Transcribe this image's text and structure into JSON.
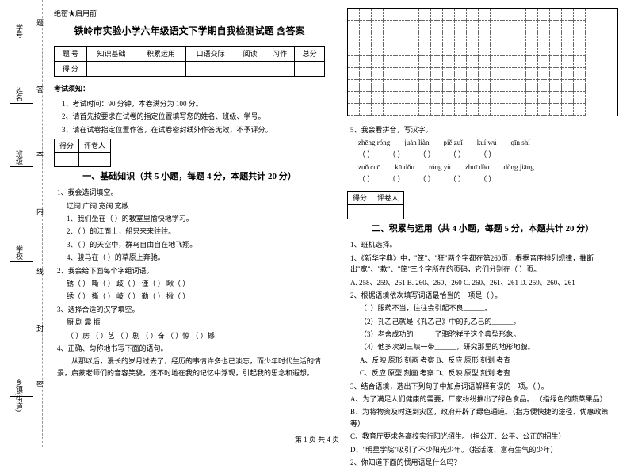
{
  "margin": {
    "xuehao": "学号",
    "xingming": "姓名",
    "banji": "班级",
    "xuexiao": "学校",
    "xiangzhen": "乡镇(街道)",
    "vt1": "题",
    "vt2": "答",
    "vt3": "本",
    "vt4": "内",
    "vt5": "线",
    "vt6": "封",
    "vt7": "密"
  },
  "secret": "绝密★启用前",
  "title": "铁岭市实验小学六年级语文下学期自我检测试题 含答案",
  "scoreHeaders": [
    "题 号",
    "知识基础",
    "积累运用",
    "口语交际",
    "阅读",
    "习作",
    "总分"
  ],
  "scoreRow": "得 分",
  "noticeHead": "考试须知：",
  "notices": [
    "1、考试时间：90 分钟，本卷满分为 100 分。",
    "2、请首先按要求在试卷的指定位置填写您的姓名、班级、学号。",
    "3、请在试卷指定位置作答，在试卷密封线外作答无效，不予评分。"
  ],
  "miniTable": {
    "c1": "得分",
    "c2": "评卷人"
  },
  "section1": "一、基础知识（共 5 小题，每题 4 分，本题共计 20 分）",
  "q1": "1、我会选词填空。",
  "q1_words": "辽阔    广阔    宽阔    宽敞",
  "q1_items": [
    "1、我们坐在（        ）的教室里愉快地学习。",
    "2、（        ）的江面上，船只来来往往。",
    "3、（        ）的天空中，群鸟自由自在地飞翔。",
    "4、骏马在（        ）的草原上奔驰。"
  ],
  "q2": "2、我会给下面每个字组词语。",
  "q2_l1": "锈（    ）    嘶（    ）    歧（    ）    谨（    ）    瞅（    ）",
  "q2_l2": "绣（    ）    撕（    ）    岐（    ）    勤（    ）    揪（    ）",
  "q3": "3、选择合适的汉字填空。",
  "q3_l1": "            厨    剧    震    振",
  "q3_l2": "（    ）房    （    ）艺    （    ）剧    （    ）奋    （    ）惊    （    ）撼",
  "q4": "4、正确、匀称地书写下面的语句。",
  "q4_p": "      从那以后，漫长的岁月过去了，经历的事情许多也已淡忘，而少年时代生活的情景，启蒙老师们的音容笑貌，还不时地在我的记忆中浮现，引起我的思念和遐想。",
  "q5": "5、我会看拼音，写汉字。",
  "pinyin": [
    [
      "zhēng róng",
      "juàn liàn",
      "piě zuǐ",
      "kuí wú",
      "qīn shí"
    ],
    [
      "zuǒ cuō",
      "kū dǒu",
      "róng yù",
      "zhuī dào",
      "dòng jiāng"
    ]
  ],
  "section2": "二、积累与运用（共 4 小题，每题 5 分，本题共计 20 分）",
  "s2_q1": "1、班机选择。",
  "s2_q1_1": "1、《新华字典》中，\"筐\"、\"狂\"两个字都在第260页，根据音序排列规律，推断出\"宽\"、\"款\"、\"筐\"三个字所在的页码，它们分别在（    ）页。",
  "s2_q1_opts": "A. 258、259、261    B. 260、260、260    C. 260、261、261    D. 259、260、261",
  "s2_q1_2": "2、根据语境依次填写词语最恰当的一项是（    ）。",
  "s2_q1_2a": "（1）服药不当，往往会引起不良______。",
  "s2_q1_2b": "（2）孔乙己就是《孔乙己》中的孔乙己的______。",
  "s2_q1_2c": "（3）老舍成功的______了骆驼祥子这个典型形象。",
  "s2_q1_2d": "（4）他多次到三峡一带______，研究那里的地形地貌。",
  "s2_q1_2opts1": "A、反映  原形  刻画 考察    B、反应  原形 刻划  考查",
  "s2_q1_2opts2": "C、反应  原型  刻画 考察    D、反映  原型 刻划  考查",
  "s2_q1_3": "3、结合语境，选出下列句子中加点词语解释有误的一项。（    ）。",
  "s2_q1_3a": "A、为了满足人们健康的需要，厂家纷纷推出了绿色食品。  （指绿色的蔬菜果品）",
  "s2_q1_3b": "B、为将物资及时送到灾区，政府开辟了绿色通道。（指方便快捷的途径、优惠政策等）",
  "s2_q1_3c": "C、教育厅要求各高校实行阳光招生。（指公开、公平、公正的招生）",
  "s2_q1_3d": "D、\"明星学院\"吸引了不少阳光少年。（指活泼、富有生气的少年）",
  "s2_q2": "2、你知道下面的惯用语是什么吗？",
  "footer": "第 1 页 共 4 页"
}
